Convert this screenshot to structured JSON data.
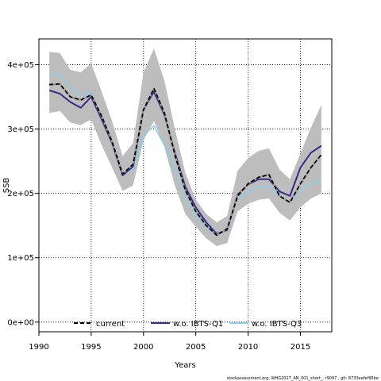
{
  "chart_data": {
    "type": "line",
    "title": "",
    "xlabel": "Years",
    "ylabel": "SSB",
    "xlim": [
      1990,
      2018
    ],
    "ylim": [
      -15000,
      440000
    ],
    "grid": true,
    "legend_position": "bottom",
    "x_ticks": [
      1990,
      1995,
      2000,
      2005,
      2010,
      2015
    ],
    "x_tick_labels": [
      "1990",
      "1995",
      "2000",
      "2005",
      "2010",
      "2015"
    ],
    "y_ticks": [
      0,
      100000,
      200000,
      300000,
      400000
    ],
    "y_tick_labels": [
      "0e+00",
      "1e+05",
      "2e+05",
      "3e+05",
      "4e+05"
    ],
    "x": [
      1991,
      1992,
      1993,
      1994,
      1995,
      1996,
      1997,
      1998,
      1999,
      2000,
      2001,
      2002,
      2003,
      2004,
      2005,
      2006,
      2007,
      2008,
      2009,
      2010,
      2011,
      2012,
      2013,
      2014,
      2015,
      2016,
      2017
    ],
    "band": {
      "color": "#bdbdbd",
      "upper": [
        420000,
        418000,
        392000,
        388000,
        402000,
        358000,
        312000,
        258000,
        278000,
        388000,
        425000,
        375000,
        300000,
        232000,
        190000,
        168000,
        155000,
        165000,
        235000,
        255000,
        266000,
        270000,
        237000,
        222000,
        262000,
        302000,
        337000
      ],
      "lower": [
        325000,
        328000,
        310000,
        306000,
        315000,
        275000,
        240000,
        204000,
        212000,
        283000,
        312000,
        272000,
        212000,
        168000,
        148000,
        130000,
        118000,
        123000,
        172000,
        184000,
        190000,
        192000,
        170000,
        158000,
        178000,
        192000,
        200000
      ]
    },
    "series": [
      {
        "name": "current",
        "color": "#000000",
        "style": "dashed",
        "values": [
          369000,
          370000,
          350000,
          345000,
          353000,
          320000,
          280000,
          230000,
          245000,
          330000,
          363000,
          325000,
          260000,
          205000,
          172000,
          150000,
          135000,
          145000,
          196000,
          215000,
          225000,
          229000,
          196000,
          186000,
          215000,
          240000,
          260000
        ]
      },
      {
        "name": "w.o. IBTS-Q1",
        "color": "#3a2a86",
        "style": "solid",
        "values": [
          360000,
          355000,
          342000,
          333000,
          350000,
          315000,
          278000,
          228000,
          242000,
          330000,
          358000,
          322000,
          263000,
          210000,
          178000,
          155000,
          137000,
          143000,
          198000,
          214000,
          222000,
          222000,
          203000,
          196000,
          240000,
          263000,
          274000
        ]
      },
      {
        "name": "w.o. IBTS-Q3",
        "color": "#87ceeb",
        "style": "solid",
        "values": [
          386000,
          383000,
          365000,
          352000,
          356000,
          318000,
          275000,
          232000,
          237000,
          290000,
          305000,
          275000,
          238000,
          192000,
          164000,
          146000,
          135000,
          143000,
          192000,
          202000,
          211000,
          210000,
          198000,
          185000,
          205000,
          215000,
          218000
        ]
      }
    ]
  },
  "footer_text": "stockassessment.org, WHG2017_AN_001_short_, r9097 , git: 8733eefef95be"
}
